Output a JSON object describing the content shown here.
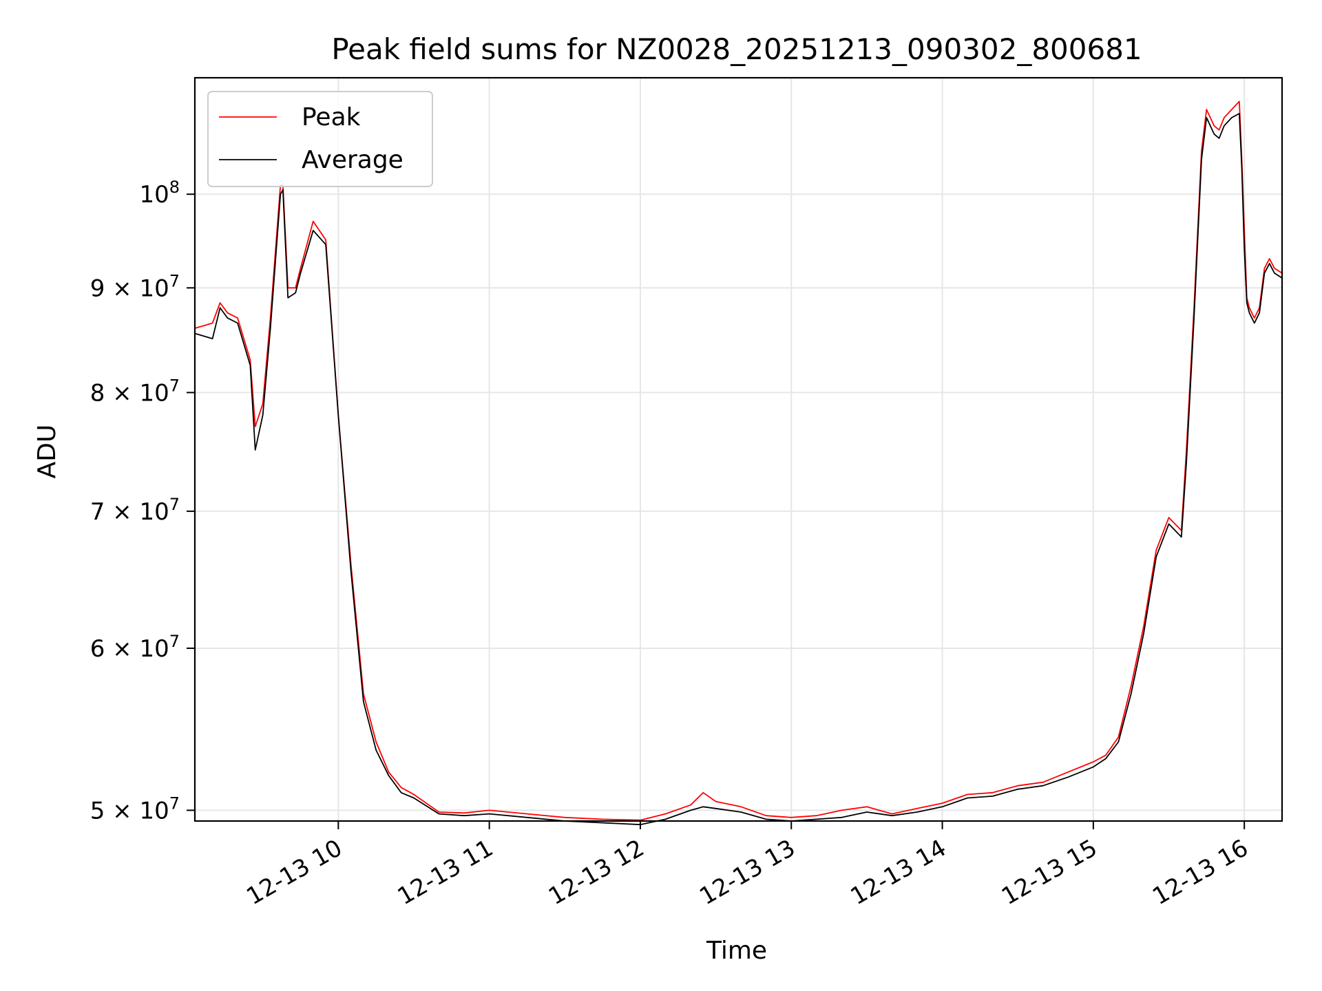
{
  "chart_data": {
    "type": "line",
    "title": "Peak field sums for NZ0028_20251213_090302_800681",
    "xlabel": "Time",
    "ylabel": "ADU",
    "scale": {
      "x": "time",
      "y": "log"
    },
    "xlim": [
      "2025-12-13 09:03",
      "2025-12-13 16:15"
    ],
    "ylim": [
      49400000,
      114000000
    ],
    "x_ticks": [
      "12-13 10",
      "12-13 11",
      "12-13 12",
      "12-13 13",
      "12-13 14",
      "12-13 15",
      "12-13 16"
    ],
    "y_ticks": [
      {
        "value": 50000000,
        "mantissa": "5",
        "exponent": "7"
      },
      {
        "value": 60000000,
        "mantissa": "6",
        "exponent": "7"
      },
      {
        "value": 70000000,
        "mantissa": "7",
        "exponent": "7"
      },
      {
        "value": 80000000,
        "mantissa": "8",
        "exponent": "7"
      },
      {
        "value": 90000000,
        "mantissa": "9",
        "exponent": "7"
      },
      {
        "value": 100000000,
        "mantissa": "",
        "exponent": "8"
      }
    ],
    "grid": true,
    "legend_position": "top-left",
    "series": [
      {
        "name": "Peak",
        "color": "#ff0000",
        "x": [
          "2025-12-13 09:03",
          "2025-12-13 09:10",
          "2025-12-13 09:13",
          "2025-12-13 09:16",
          "2025-12-13 09:20",
          "2025-12-13 09:25",
          "2025-12-13 09:27",
          "2025-12-13 09:30",
          "2025-12-13 09:33",
          "2025-12-13 09:37",
          "2025-12-13 09:38",
          "2025-12-13 09:40",
          "2025-12-13 09:43",
          "2025-12-13 09:45",
          "2025-12-13 09:50",
          "2025-12-13 09:55",
          "2025-12-13 10:00",
          "2025-12-13 10:05",
          "2025-12-13 10:10",
          "2025-12-13 10:15",
          "2025-12-13 10:20",
          "2025-12-13 10:25",
          "2025-12-13 10:30",
          "2025-12-13 10:40",
          "2025-12-13 10:50",
          "2025-12-13 11:00",
          "2025-12-13 11:15",
          "2025-12-13 11:30",
          "2025-12-13 11:45",
          "2025-12-13 12:00",
          "2025-12-13 12:10",
          "2025-12-13 12:20",
          "2025-12-13 12:25",
          "2025-12-13 12:30",
          "2025-12-13 12:40",
          "2025-12-13 12:50",
          "2025-12-13 13:00",
          "2025-12-13 13:10",
          "2025-12-13 13:20",
          "2025-12-13 13:30",
          "2025-12-13 13:40",
          "2025-12-13 13:50",
          "2025-12-13 14:00",
          "2025-12-13 14:10",
          "2025-12-13 14:20",
          "2025-12-13 14:30",
          "2025-12-13 14:40",
          "2025-12-13 14:50",
          "2025-12-13 15:00",
          "2025-12-13 15:05",
          "2025-12-13 15:10",
          "2025-12-13 15:15",
          "2025-12-13 15:20",
          "2025-12-13 15:25",
          "2025-12-13 15:30",
          "2025-12-13 15:35",
          "2025-12-13 15:37",
          "2025-12-13 15:40",
          "2025-12-13 15:43",
          "2025-12-13 15:45",
          "2025-12-13 15:48",
          "2025-12-13 15:50",
          "2025-12-13 15:52",
          "2025-12-13 15:55",
          "2025-12-13 15:58",
          "2025-12-13 15:59",
          "2025-12-13 16:00",
          "2025-12-13 16:01",
          "2025-12-13 16:02",
          "2025-12-13 16:04",
          "2025-12-13 16:06",
          "2025-12-13 16:08",
          "2025-12-13 16:10",
          "2025-12-13 16:12",
          "2025-12-13 16:15"
        ],
        "y": [
          86000000,
          86500000,
          88500000,
          87500000,
          87000000,
          83000000,
          77000000,
          79000000,
          87000000,
          101000000,
          101000000,
          90000000,
          90000000,
          92000000,
          97000000,
          95000000,
          78000000,
          66000000,
          57000000,
          54000000,
          52200000,
          51300000,
          50900000,
          49900000,
          49850000,
          50000000,
          49800000,
          49600000,
          49500000,
          49450000,
          49800000,
          50300000,
          51000000,
          50500000,
          50200000,
          49700000,
          49600000,
          49700000,
          50000000,
          50200000,
          49800000,
          50100000,
          50400000,
          50900000,
          51000000,
          51400000,
          51600000,
          52200000,
          52800000,
          53200000,
          54300000,
          57500000,
          61500000,
          67000000,
          69500000,
          68500000,
          75000000,
          88000000,
          105000000,
          110000000,
          108000000,
          107500000,
          109000000,
          110000000,
          111000000,
          104000000,
          96000000,
          89000000,
          88000000,
          87000000,
          88000000,
          92000000,
          93000000,
          92000000,
          91500000
        ]
      },
      {
        "name": "Average",
        "color": "#000000",
        "x": [
          "2025-12-13 09:03",
          "2025-12-13 09:10",
          "2025-12-13 09:13",
          "2025-12-13 09:16",
          "2025-12-13 09:20",
          "2025-12-13 09:25",
          "2025-12-13 09:27",
          "2025-12-13 09:30",
          "2025-12-13 09:33",
          "2025-12-13 09:37",
          "2025-12-13 09:38",
          "2025-12-13 09:40",
          "2025-12-13 09:43",
          "2025-12-13 09:45",
          "2025-12-13 09:50",
          "2025-12-13 09:55",
          "2025-12-13 10:00",
          "2025-12-13 10:05",
          "2025-12-13 10:10",
          "2025-12-13 10:15",
          "2025-12-13 10:20",
          "2025-12-13 10:25",
          "2025-12-13 10:30",
          "2025-12-13 10:40",
          "2025-12-13 10:50",
          "2025-12-13 11:00",
          "2025-12-13 11:15",
          "2025-12-13 11:30",
          "2025-12-13 11:45",
          "2025-12-13 12:00",
          "2025-12-13 12:10",
          "2025-12-13 12:20",
          "2025-12-13 12:25",
          "2025-12-13 12:30",
          "2025-12-13 12:40",
          "2025-12-13 12:50",
          "2025-12-13 13:00",
          "2025-12-13 13:10",
          "2025-12-13 13:20",
          "2025-12-13 13:30",
          "2025-12-13 13:40",
          "2025-12-13 13:50",
          "2025-12-13 14:00",
          "2025-12-13 14:10",
          "2025-12-13 14:20",
          "2025-12-13 14:30",
          "2025-12-13 14:40",
          "2025-12-13 14:50",
          "2025-12-13 15:00",
          "2025-12-13 15:05",
          "2025-12-13 15:10",
          "2025-12-13 15:15",
          "2025-12-13 15:20",
          "2025-12-13 15:25",
          "2025-12-13 15:30",
          "2025-12-13 15:35",
          "2025-12-13 15:37",
          "2025-12-13 15:40",
          "2025-12-13 15:43",
          "2025-12-13 15:45",
          "2025-12-13 15:48",
          "2025-12-13 15:50",
          "2025-12-13 15:52",
          "2025-12-13 15:55",
          "2025-12-13 15:58",
          "2025-12-13 15:59",
          "2025-12-13 16:00",
          "2025-12-13 16:01",
          "2025-12-13 16:02",
          "2025-12-13 16:04",
          "2025-12-13 16:06",
          "2025-12-13 16:08",
          "2025-12-13 16:10",
          "2025-12-13 16:12",
          "2025-12-13 16:15"
        ],
        "y": [
          85500000,
          85000000,
          88000000,
          87000000,
          86500000,
          82500000,
          75000000,
          78000000,
          86000000,
          100000000,
          100500000,
          89000000,
          89500000,
          91500000,
          96000000,
          94500000,
          78000000,
          65500000,
          56500000,
          53500000,
          52000000,
          51000000,
          50700000,
          49800000,
          49700000,
          49800000,
          49600000,
          49400000,
          49300000,
          49200000,
          49500000,
          50000000,
          50200000,
          50100000,
          49900000,
          49500000,
          49400000,
          49500000,
          49600000,
          49900000,
          49700000,
          49900000,
          50200000,
          50700000,
          50800000,
          51200000,
          51400000,
          51900000,
          52500000,
          53000000,
          54000000,
          57000000,
          61000000,
          66500000,
          69000000,
          68000000,
          74000000,
          87000000,
          104000000,
          109000000,
          107000000,
          106500000,
          108000000,
          109000000,
          109500000,
          103000000,
          94000000,
          88500000,
          87500000,
          86500000,
          87500000,
          91500000,
          92500000,
          91500000,
          91000000
        ]
      }
    ]
  }
}
